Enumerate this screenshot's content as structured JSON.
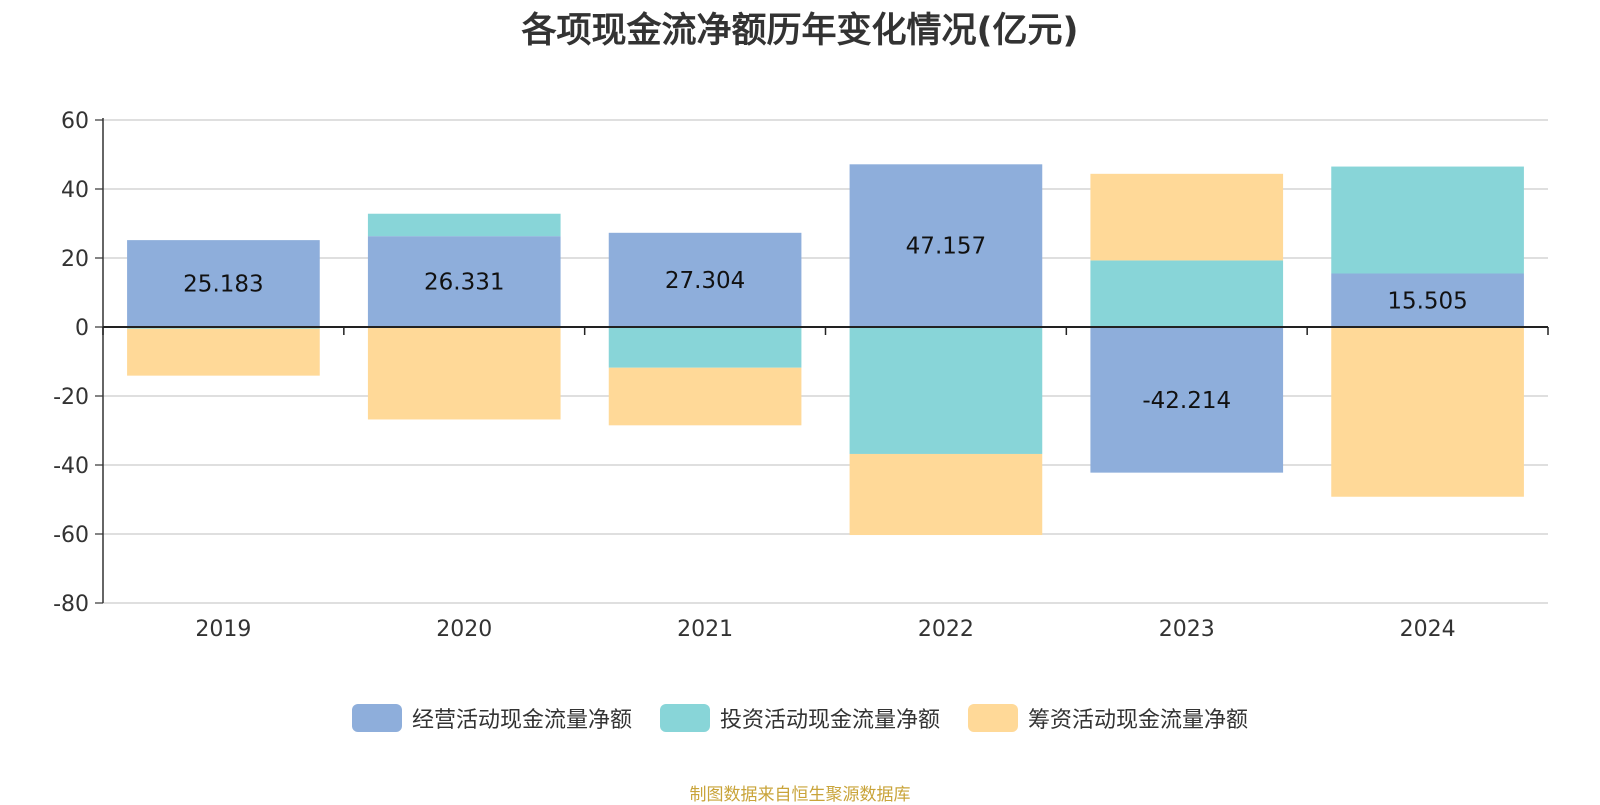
{
  "chart_data": {
    "type": "bar",
    "stacked": true,
    "title": "各项现金流净额历年变化情况(亿元)",
    "categories": [
      "2019",
      "2020",
      "2021",
      "2022",
      "2023",
      "2024"
    ],
    "series": [
      {
        "name": "经营活动现金流量净额",
        "color": "#8eaedb",
        "values": [
          25.183,
          26.331,
          27.304,
          47.157,
          -42.214,
          15.505
        ],
        "labeled": true
      },
      {
        "name": "投资活动现金流量净额",
        "color": "#88d5d8",
        "values": [
          -0.5,
          6.5,
          -11.8,
          -36.8,
          19.3,
          31.0
        ],
        "labeled": false
      },
      {
        "name": "筹资活动现金流量净额",
        "color": "#ffd998",
        "values": [
          -13.6,
          -26.8,
          -16.7,
          -23.5,
          25.1,
          -49.2
        ],
        "labeled": false
      }
    ],
    "ylim": [
      -80,
      60
    ],
    "yticks": [
      60,
      40,
      20,
      0,
      -20,
      -40,
      -60,
      -80
    ],
    "grid": true,
    "legend_position": "bottom"
  },
  "source_note": "制图数据来自恒生聚源数据库"
}
